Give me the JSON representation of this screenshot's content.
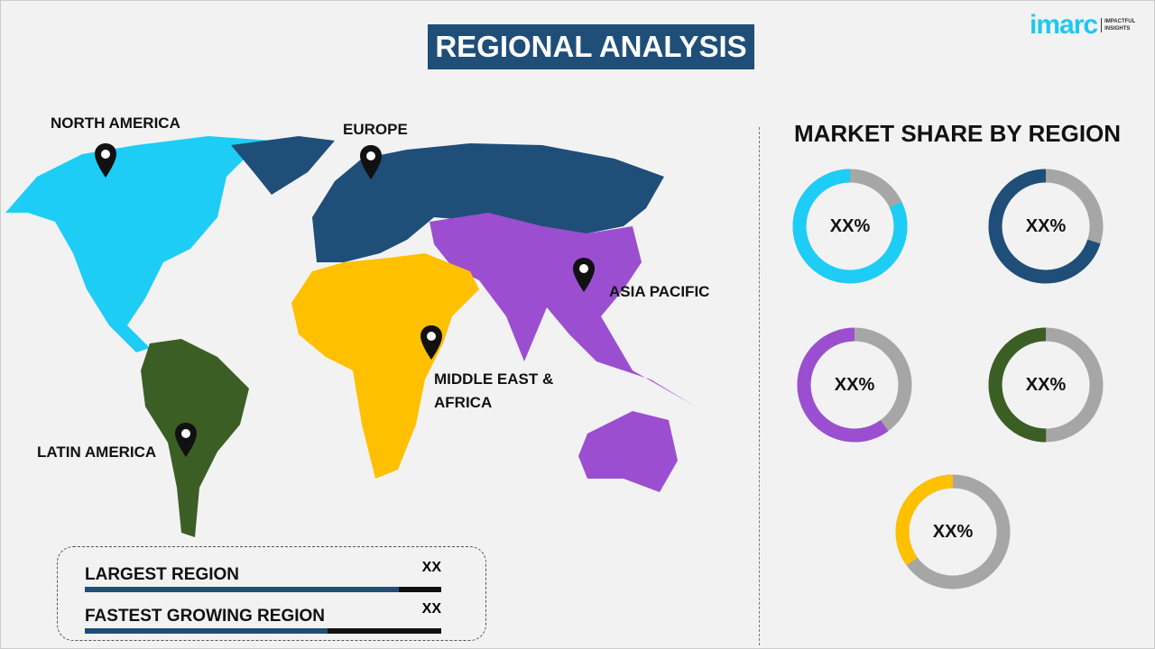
{
  "header": {
    "title": "REGIONAL ANALYSIS",
    "logo": {
      "brand": "imarc",
      "tagline_1": "IMPACTFUL",
      "tagline_2": "INSIGHTS"
    }
  },
  "map": {
    "regions": [
      {
        "name": "NORTH AMERICA",
        "color": "#1ecdf5"
      },
      {
        "name": "EUROPE",
        "color": "#1f4e79"
      },
      {
        "name": "ASIA PACIFIC",
        "color": "#9b4fd0"
      },
      {
        "name": "MIDDLE EAST & AFRICA",
        "color": "#ffc000"
      },
      {
        "name": "LATIN AMERICA",
        "color": "#3b5e25"
      }
    ]
  },
  "market_share": {
    "title": "MARKET SHARE BY REGION",
    "donuts": [
      {
        "region": "North America",
        "label": "XX%",
        "color": "#1ecdf5",
        "fraction": 0.82
      },
      {
        "region": "Europe",
        "label": "XX%",
        "color": "#1f4e79",
        "fraction": 0.7
      },
      {
        "region": "Asia Pacific",
        "label": "XX%",
        "color": "#9b4fd0",
        "fraction": 0.6
      },
      {
        "region": "Latin America",
        "label": "XX%",
        "color": "#3b5e25",
        "fraction": 0.5
      },
      {
        "region": "Middle East & Africa",
        "label": "XX%",
        "color": "#ffc000",
        "fraction": 0.35
      }
    ],
    "rest_color": "#a6a6a6"
  },
  "summary": [
    {
      "label": "LARGEST REGION",
      "value": "XX",
      "fill_percent": 88
    },
    {
      "label": "FASTEST GROWING REGION",
      "value": "XX",
      "fill_percent": 68
    }
  ]
}
